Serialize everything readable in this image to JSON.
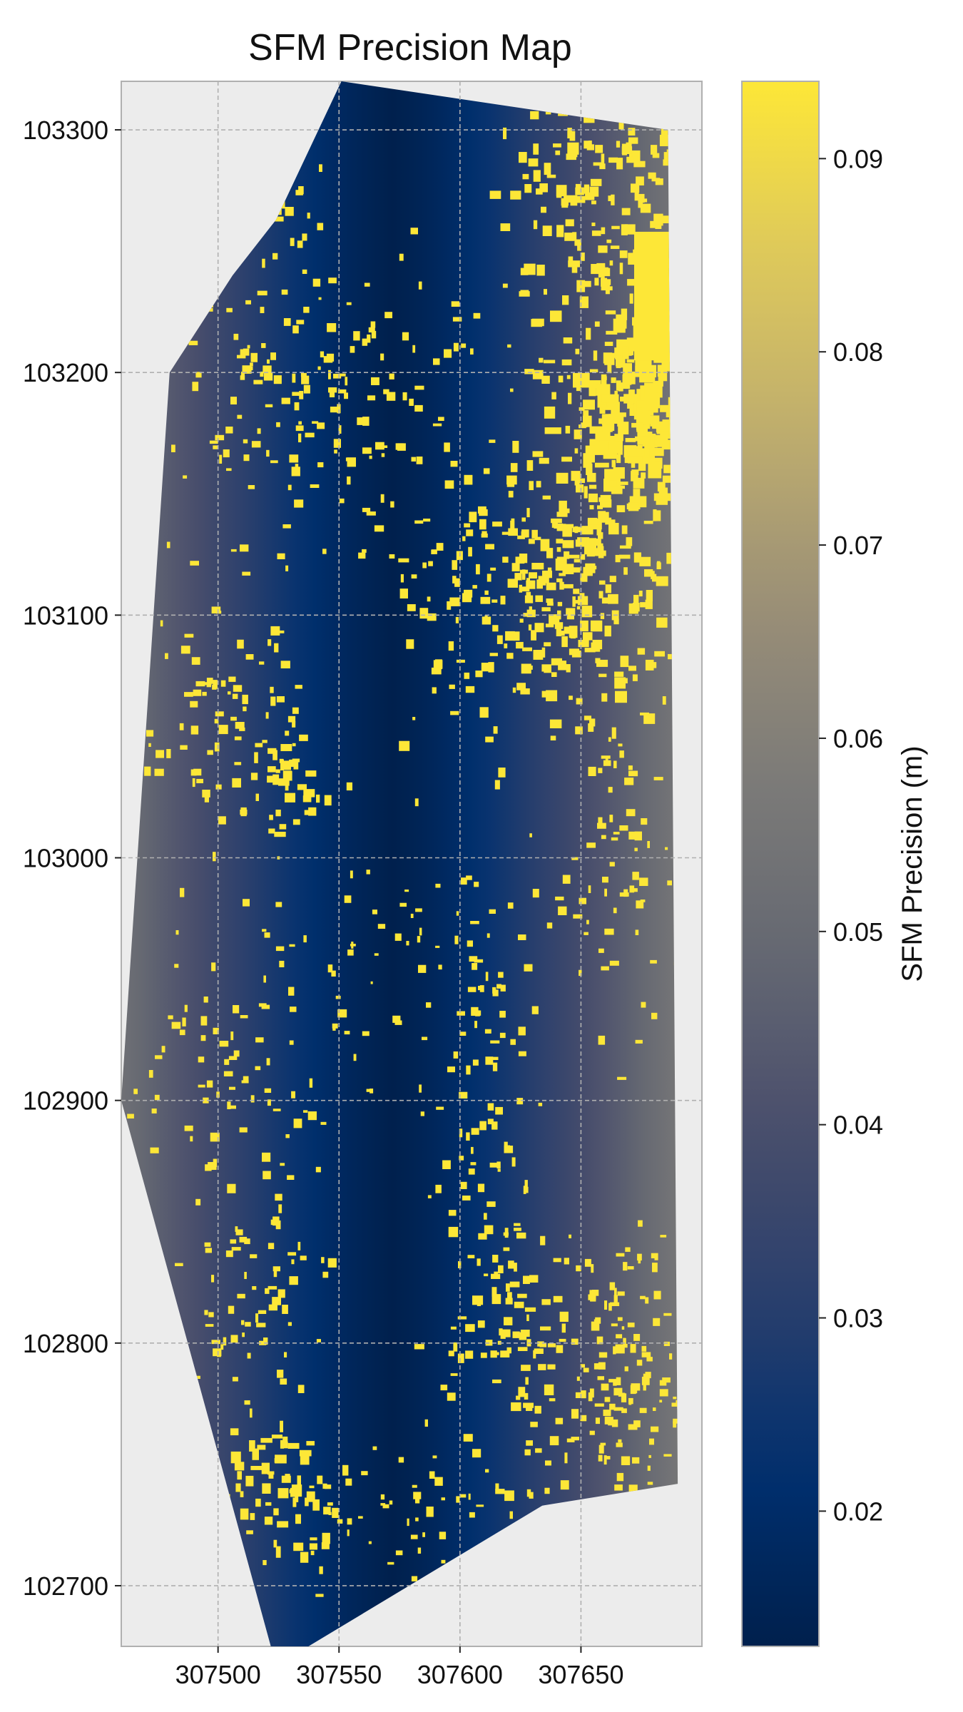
{
  "chart_data": {
    "type": "heatmap",
    "title": "SFM Precision Map",
    "xlabel": "",
    "ylabel": "",
    "x_ticks": [
      307500,
      307550,
      307600,
      307650
    ],
    "y_ticks": [
      103300,
      103200,
      103100,
      103000,
      102900,
      102800,
      102700
    ],
    "xlim": [
      307460,
      307700
    ],
    "ylim": [
      102675,
      103320
    ],
    "grid": true,
    "colorbar": {
      "label": "SFM Precision (m)",
      "ticks": [
        0.09,
        0.08,
        0.07,
        0.06,
        0.05,
        0.04,
        0.03,
        0.02
      ],
      "range": [
        0.013,
        0.094
      ],
      "colormap": "cividis",
      "colors": [
        "#00204d",
        "#00306f",
        "#2a3f6d",
        "#4a4e6c",
        "#656872",
        "#7c7b78",
        "#9a8f77",
        "#bfae6d",
        "#ddc85c",
        "#fde737"
      ]
    },
    "survey_outline": [
      [
        307524,
        103263
      ],
      [
        307551,
        103320
      ],
      [
        307686,
        103300
      ],
      [
        307690,
        102742
      ],
      [
        307634,
        102733
      ],
      [
        307524,
        102667
      ],
      [
        307504,
        102740
      ],
      [
        307460,
        102900
      ],
      [
        307480,
        103200
      ],
      [
        307506,
        103240
      ]
    ],
    "precision_field": {
      "description": "minimum near center x=307572, increasing toward edges",
      "min_value": 0.013,
      "max_value": 0.06,
      "center_x": 307572
    },
    "high_error_color": "#fde737",
    "high_error_value": 0.094
  }
}
